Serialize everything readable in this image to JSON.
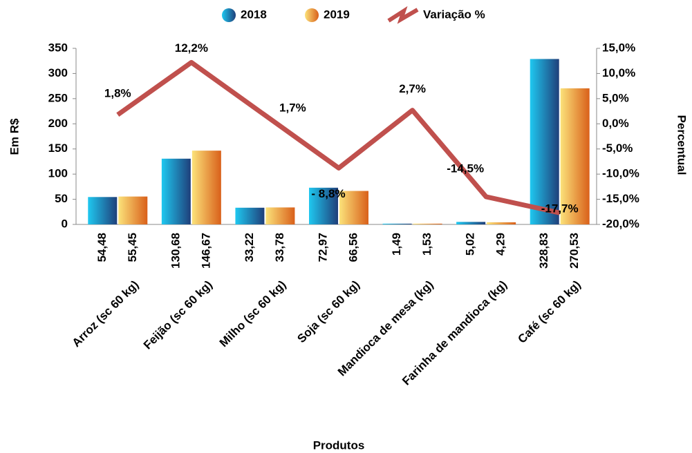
{
  "chart_data": {
    "type": "bar",
    "categories": [
      "Arroz (sc 60 kg)",
      "Feijão (sc 60 kg)",
      "Milho (sc 60 kg)",
      "Soja (sc 60 kg)",
      "Mandioca de mesa (kg)",
      "Farinha de mandioca (kg)",
      "Café (sc 60 kg)"
    ],
    "series": [
      {
        "name": "2018",
        "color": "#1f3f7a",
        "values": [
          54.48,
          130.68,
          33.22,
          72.97,
          1.49,
          5.02,
          328.83
        ],
        "value_labels": [
          "54,48",
          "130,68",
          "33,22",
          "72,97",
          "1,49",
          "5,02",
          "328,83"
        ]
      },
      {
        "name": "2019",
        "color": "#d9601a",
        "values": [
          55.45,
          146.67,
          33.78,
          66.56,
          1.53,
          4.29,
          270.53
        ],
        "value_labels": [
          "55,45",
          "146,67",
          "33,78",
          "66,56",
          "1,53",
          "4,29",
          "270,53"
        ]
      },
      {
        "name": "Variação %",
        "type": "line",
        "axis": "y2",
        "color": "#c0504d",
        "values": [
          1.8,
          12.2,
          1.7,
          -8.8,
          2.7,
          -14.5,
          -17.7
        ],
        "value_labels": [
          "1,8%",
          "12,2%",
          "1,7%",
          "- 8,8%",
          "2,7%",
          "-14,5%",
          "-17,7%"
        ]
      }
    ],
    "ylabel": "Em R$",
    "y2label": "Percentual",
    "xlabel": "Produtos",
    "ylim": [
      0,
      350
    ],
    "yticks": [
      0,
      50,
      100,
      150,
      200,
      250,
      300,
      350
    ],
    "y2lim": [
      -20,
      15
    ],
    "y2ticks": [
      {
        "value": -20,
        "label": "-20,0%"
      },
      {
        "value": -15,
        "label": "-15,0%"
      },
      {
        "value": -10,
        "label": "-10,0%"
      },
      {
        "value": -5,
        "label": "-5,0%"
      },
      {
        "value": 0,
        "label": "0,0%"
      },
      {
        "value": 5,
        "label": "5,0%"
      },
      {
        "value": 10,
        "label": "10,0%"
      },
      {
        "value": 15,
        "label": "15,0%"
      }
    ],
    "legend": "top"
  }
}
